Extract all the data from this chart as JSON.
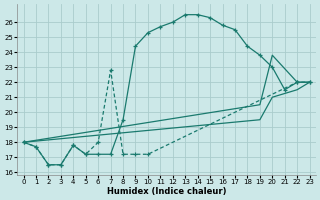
{
  "xlabel": "Humidex (Indice chaleur)",
  "background_color": "#cce8e8",
  "grid_color": "#b0d0d0",
  "line_color": "#1a7a6e",
  "xlim": [
    -0.5,
    23.5
  ],
  "ylim": [
    15.8,
    27.2
  ],
  "xticks": [
    0,
    1,
    2,
    3,
    4,
    5,
    6,
    7,
    8,
    9,
    10,
    11,
    12,
    13,
    14,
    15,
    16,
    17,
    18,
    19,
    20,
    21,
    22,
    23
  ],
  "yticks": [
    16,
    17,
    18,
    19,
    20,
    21,
    22,
    23,
    24,
    25,
    26
  ],
  "line1_x": [
    0,
    1,
    2,
    3,
    4,
    5,
    6,
    7,
    8,
    9,
    10,
    11,
    12,
    13,
    14,
    15,
    16,
    17,
    18,
    19,
    20,
    21,
    22,
    23
  ],
  "line1_y": [
    18.0,
    17.7,
    16.5,
    16.5,
    17.8,
    17.2,
    17.2,
    17.2,
    19.5,
    24.4,
    25.3,
    25.7,
    26.0,
    26.5,
    26.5,
    26.3,
    25.8,
    25.5,
    24.4,
    23.8,
    23.0,
    21.5,
    22.0,
    22.0
  ],
  "line2_x": [
    0,
    1,
    2,
    3,
    4,
    5,
    6,
    7,
    8,
    9,
    10,
    22,
    23
  ],
  "line2_y": [
    18.0,
    17.7,
    16.5,
    16.5,
    17.8,
    17.2,
    18.0,
    22.8,
    17.2,
    17.2,
    17.2,
    22.0,
    22.0
  ],
  "line3_x": [
    0,
    19,
    20,
    22,
    23
  ],
  "line3_y": [
    18.0,
    20.5,
    23.8,
    22.0,
    22.0
  ],
  "line4_x": [
    0,
    19,
    20,
    22,
    23
  ],
  "line4_y": [
    18.0,
    19.5,
    21.0,
    21.5,
    22.0
  ]
}
